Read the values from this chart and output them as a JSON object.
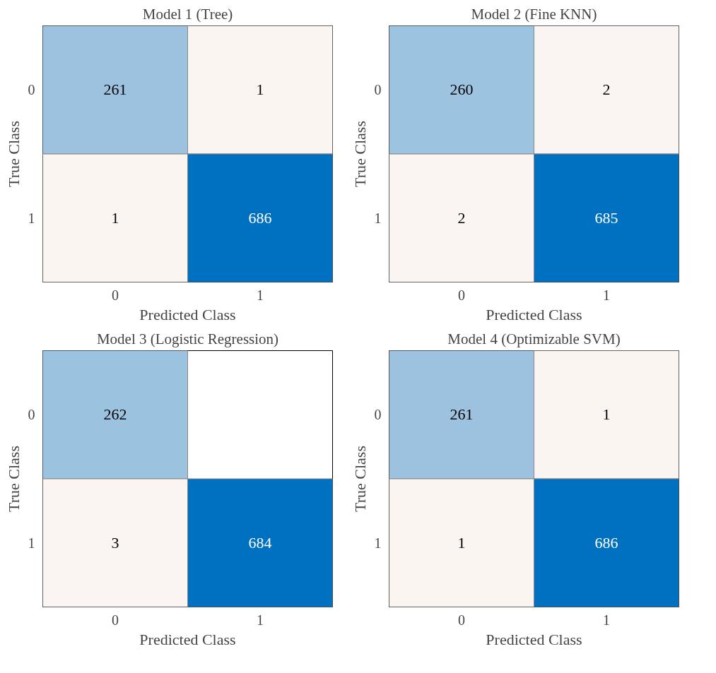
{
  "chart_data": [
    {
      "type": "heatmap",
      "title": "Model 1 (Tree)",
      "xlabel": "Predicted Class",
      "ylabel": "True Class",
      "categories": [
        "0",
        "1"
      ],
      "y_categories": [
        "0",
        "1"
      ],
      "cells": [
        [
          261,
          1
        ],
        [
          1,
          686
        ]
      ],
      "data_labels": true,
      "colors": [
        "#fbf5f2",
        "#0070c0"
      ]
    },
    {
      "type": "heatmap",
      "title": "Model 2 (Fine KNN)",
      "xlabel": "Predicted Class",
      "ylabel": "True Class",
      "categories": [
        "0",
        "1"
      ],
      "y_categories": [
        "0",
        "1"
      ],
      "cells": [
        [
          260,
          2
        ],
        [
          2,
          685
        ]
      ],
      "data_labels": true,
      "colors": [
        "#fbf5f2",
        "#0070c0"
      ]
    },
    {
      "type": "heatmap",
      "title": "Model 3 (Logistic Regression)",
      "xlabel": "Predicted Class",
      "ylabel": "True Class",
      "categories": [
        "0",
        "1"
      ],
      "y_categories": [
        "0",
        "1"
      ],
      "cells": [
        [
          262,
          null
        ],
        [
          3,
          684
        ]
      ],
      "data_labels": true,
      "colors": [
        "#fbf5f2",
        "#0070c0"
      ]
    },
    {
      "type": "heatmap",
      "title": "Model 4 (Optimizable SVM)",
      "xlabel": "Predicted Class",
      "ylabel": "True Class",
      "categories": [
        "0",
        "1"
      ],
      "y_categories": [
        "0",
        "1"
      ],
      "cells": [
        [
          261,
          1
        ],
        [
          1,
          686
        ]
      ],
      "data_labels": true,
      "colors": [
        "#fbf5f2",
        "#0070c0"
      ]
    }
  ]
}
